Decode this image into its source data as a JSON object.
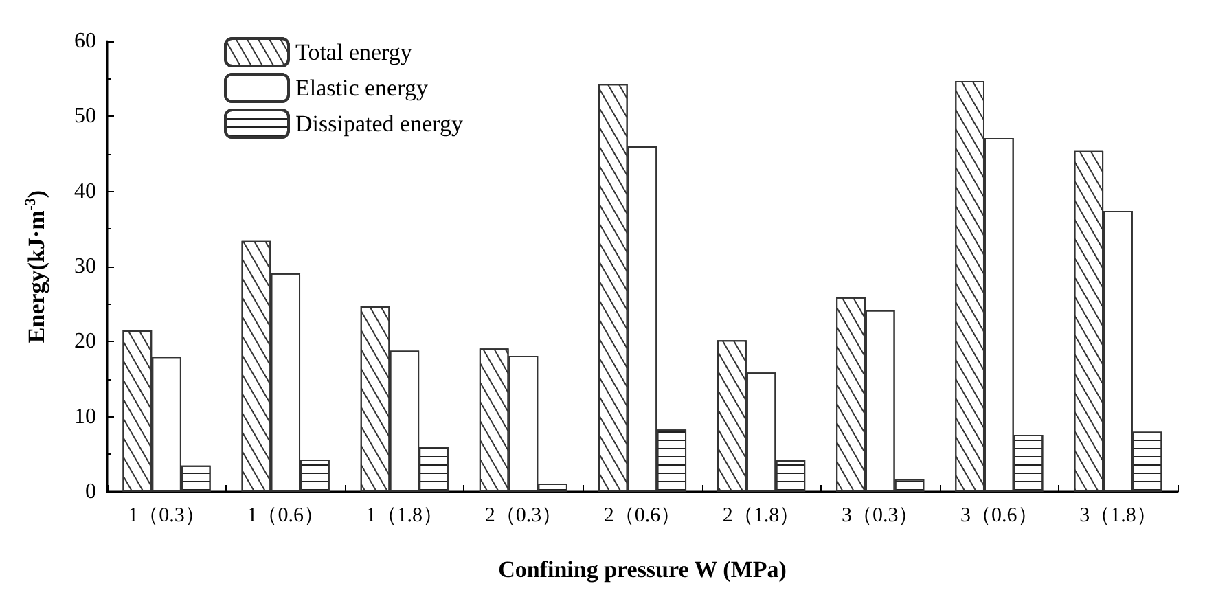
{
  "chart_data": {
    "type": "bar",
    "xlabel": "Confining pressure W (MPa)",
    "ylabel": "Energy(kJ·m$^{-3}$)",
    "categories": [
      "1（0.3）",
      "1（0.6）",
      "1（1.8）",
      "2（0.3）",
      "2（0.6）",
      "2（1.8）",
      "3（0.3）",
      "3（0.6）",
      "3（1.8）"
    ],
    "series": [
      {
        "name": "Total energy",
        "color": "#ffffff",
        "values": [
          21.5,
          33.4,
          24.7,
          19.1,
          54.3,
          20.2,
          25.9,
          54.7,
          45.4
        ]
      },
      {
        "name": "Elastic energy",
        "color": "#ffffff",
        "values": [
          18.0,
          29.1,
          18.8,
          18.1,
          46.0,
          15.9,
          24.2,
          47.1,
          37.4
        ]
      },
      {
        "name": "Dissipated energy",
        "color": "#ffffff",
        "values": [
          3.5,
          4.3,
          6.0,
          1.1,
          8.3,
          4.2,
          1.7,
          7.6,
          8.0
        ]
      }
    ],
    "ylim": [
      0,
      60
    ],
    "yticks": [
      0,
      10,
      20,
      30,
      40,
      50,
      60
    ],
    "grid": false,
    "legend": "top left"
  }
}
